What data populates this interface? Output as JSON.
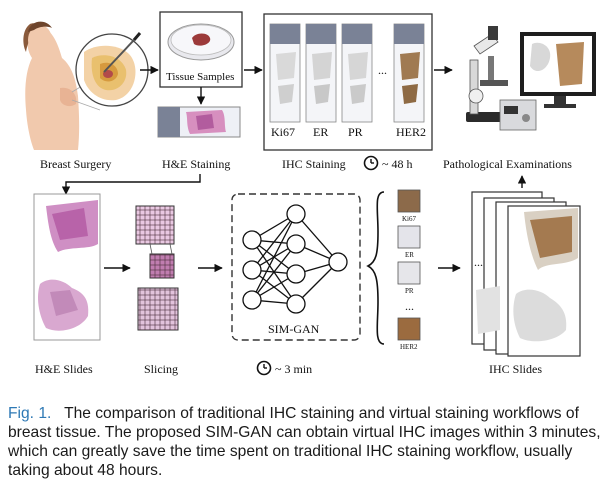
{
  "top_row": {
    "breast_surgery": "Breast Surgery",
    "tissue_samples": "Tissue Samples",
    "he_staining": "H&E Staining",
    "ihc_staining": "IHC Staining",
    "ihc_time": "~ 48 h",
    "pathological_exams": "Pathological Examinations",
    "markers": [
      "Ki67",
      "ER",
      "PR",
      "HER2"
    ],
    "ellipsis": "..."
  },
  "bottom_row": {
    "he_slides": "H&E Slides",
    "slicing": "Slicing",
    "model_name": "SIM-GAN",
    "model_time": "~ 3 min",
    "ihc_slides": "IHC Slides",
    "patch_markers": [
      "Ki67",
      "ER",
      "PR",
      "HER2"
    ],
    "ellipsis": "..."
  },
  "caption": {
    "fig_label": "Fig. 1.",
    "text": "The comparison of traditional IHC staining and virtual staining workflows of breast tissue. The proposed SIM-GAN can obtain virtual IHC images within 3 minutes, which can greatly save the time spent on traditional IHC staining workflow, usually taking about 48 hours."
  }
}
